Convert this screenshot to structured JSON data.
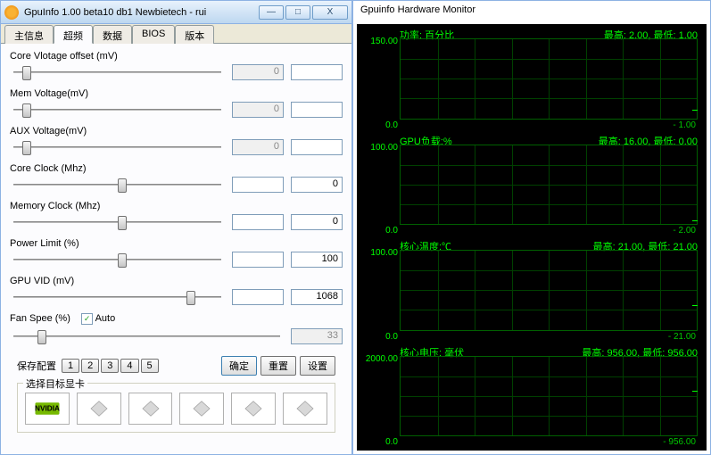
{
  "window": {
    "title": "GpuInfo 1.00 beta10 db1 Newbietech - rui",
    "minimize": "—",
    "maximize": "□",
    "close": "X"
  },
  "tabs": [
    "主信息",
    "超频",
    "数据",
    "BIOS",
    "版本"
  ],
  "activeTab": 1,
  "sliders": [
    {
      "label": "Core Vlotage offset (mV)",
      "val1": "0",
      "val2": "",
      "v1dis": true,
      "v2show": true,
      "thumb": 6
    },
    {
      "label": "Mem Voltage(mV)",
      "val1": "0",
      "val2": "",
      "v1dis": true,
      "v2show": true,
      "thumb": 6
    },
    {
      "label": "AUX Voltage(mV)",
      "val1": "0",
      "val2": "",
      "v1dis": true,
      "v2show": true,
      "thumb": 6
    },
    {
      "label": "Core Clock (Mhz)",
      "val1": "",
      "val2": "0",
      "v1dis": false,
      "v2show": true,
      "thumb": 50
    },
    {
      "label": "Memory Clock (Mhz)",
      "val1": "",
      "val2": "0",
      "v1dis": false,
      "v2show": true,
      "thumb": 50
    },
    {
      "label": "Power Limit (%)",
      "val1": "",
      "val2": "100",
      "v1dis": false,
      "v2show": true,
      "thumb": 50
    },
    {
      "label": "GPU VID (mV)",
      "val1": "",
      "val2": "1068",
      "v1dis": false,
      "v2show": true,
      "thumb": 82
    }
  ],
  "fanRow": {
    "label": "Fan Spee (%)",
    "auto": "Auto",
    "checked": true,
    "val": "33"
  },
  "bottom": {
    "save": "保存配置",
    "slots": [
      "1",
      "2",
      "3",
      "4",
      "5"
    ],
    "ok": "确定",
    "reset": "重置",
    "settings": "设置"
  },
  "gpuSelect": {
    "legend": "选择目标显卡"
  },
  "monitor": {
    "title": "Gpuinfo Hardware Monitor",
    "charts": [
      {
        "name": "功率: 百分比",
        "stats": "最高: 2.00, 最低: 1.00",
        "ymax": "150.00",
        "ymin": "0.0",
        "cur": "1.00",
        "tickPos": 80
      },
      {
        "name": "GPU负载:%",
        "stats": "最高: 16.00, 最低: 0.00",
        "ymax": "100.00",
        "ymin": "0.0",
        "cur": "2.00",
        "tickPos": 85
      },
      {
        "name": "核心温度:℃",
        "stats": "最高: 21.00, 最低: 21.00",
        "ymax": "100.00",
        "ymin": "0.0",
        "cur": "21.00",
        "tickPos": 65
      },
      {
        "name": "核心电压: 毫伏",
        "stats": "最高: 956.00, 最低: 956.00",
        "ymax": "2000.00",
        "ymin": "0.0",
        "cur": "956.00",
        "tickPos": 45
      }
    ]
  },
  "colors": {
    "green": "#00ff00",
    "darkgrid": "#004000",
    "gridborder": "#006000",
    "bg": "#000000"
  }
}
